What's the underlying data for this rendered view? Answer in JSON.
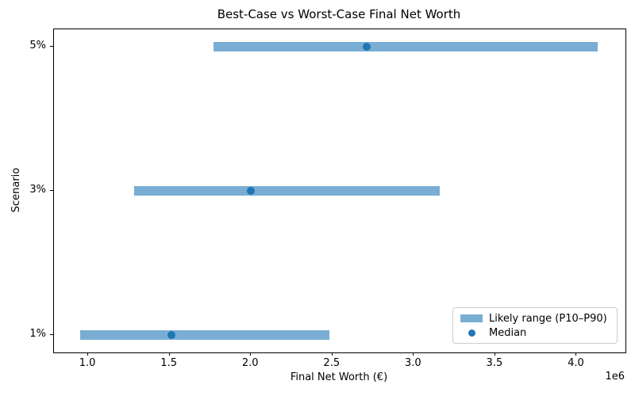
{
  "chart_data": {
    "type": "bar",
    "orientation": "horizontal",
    "title": "Best-Case vs Worst-Case Final Net Worth",
    "xlabel": "Final Net Worth (€)",
    "ylabel": "Scenario",
    "x_offset_text": "1e6",
    "categories": [
      "1%",
      "3%",
      "5%"
    ],
    "y_positions": [
      0,
      1,
      2
    ],
    "series": [
      {
        "name": "Likely range (P10–P90)",
        "type": "range",
        "p10": [
          950000,
          1280000,
          1770000
        ],
        "p90": [
          2480000,
          3160000,
          4130000
        ]
      },
      {
        "name": "Median",
        "type": "point",
        "values": [
          1510000,
          2000000,
          2710000
        ]
      }
    ],
    "xlim": [
      790000,
      4300000
    ],
    "ylim": [
      -0.12,
      2.12
    ],
    "xticks": [
      1000000,
      1500000,
      2000000,
      2500000,
      3000000,
      3500000,
      4000000
    ],
    "xtick_labels": [
      "1.0",
      "1.5",
      "2.0",
      "2.5",
      "3.0",
      "3.5",
      "4.0"
    ],
    "grid": false,
    "legend": {
      "position": "lower right"
    },
    "colors": {
      "range_bar": "#7aadd3",
      "median_dot": "#1f77b4",
      "spine": "#000000",
      "legend_border": "#cccccc"
    }
  }
}
